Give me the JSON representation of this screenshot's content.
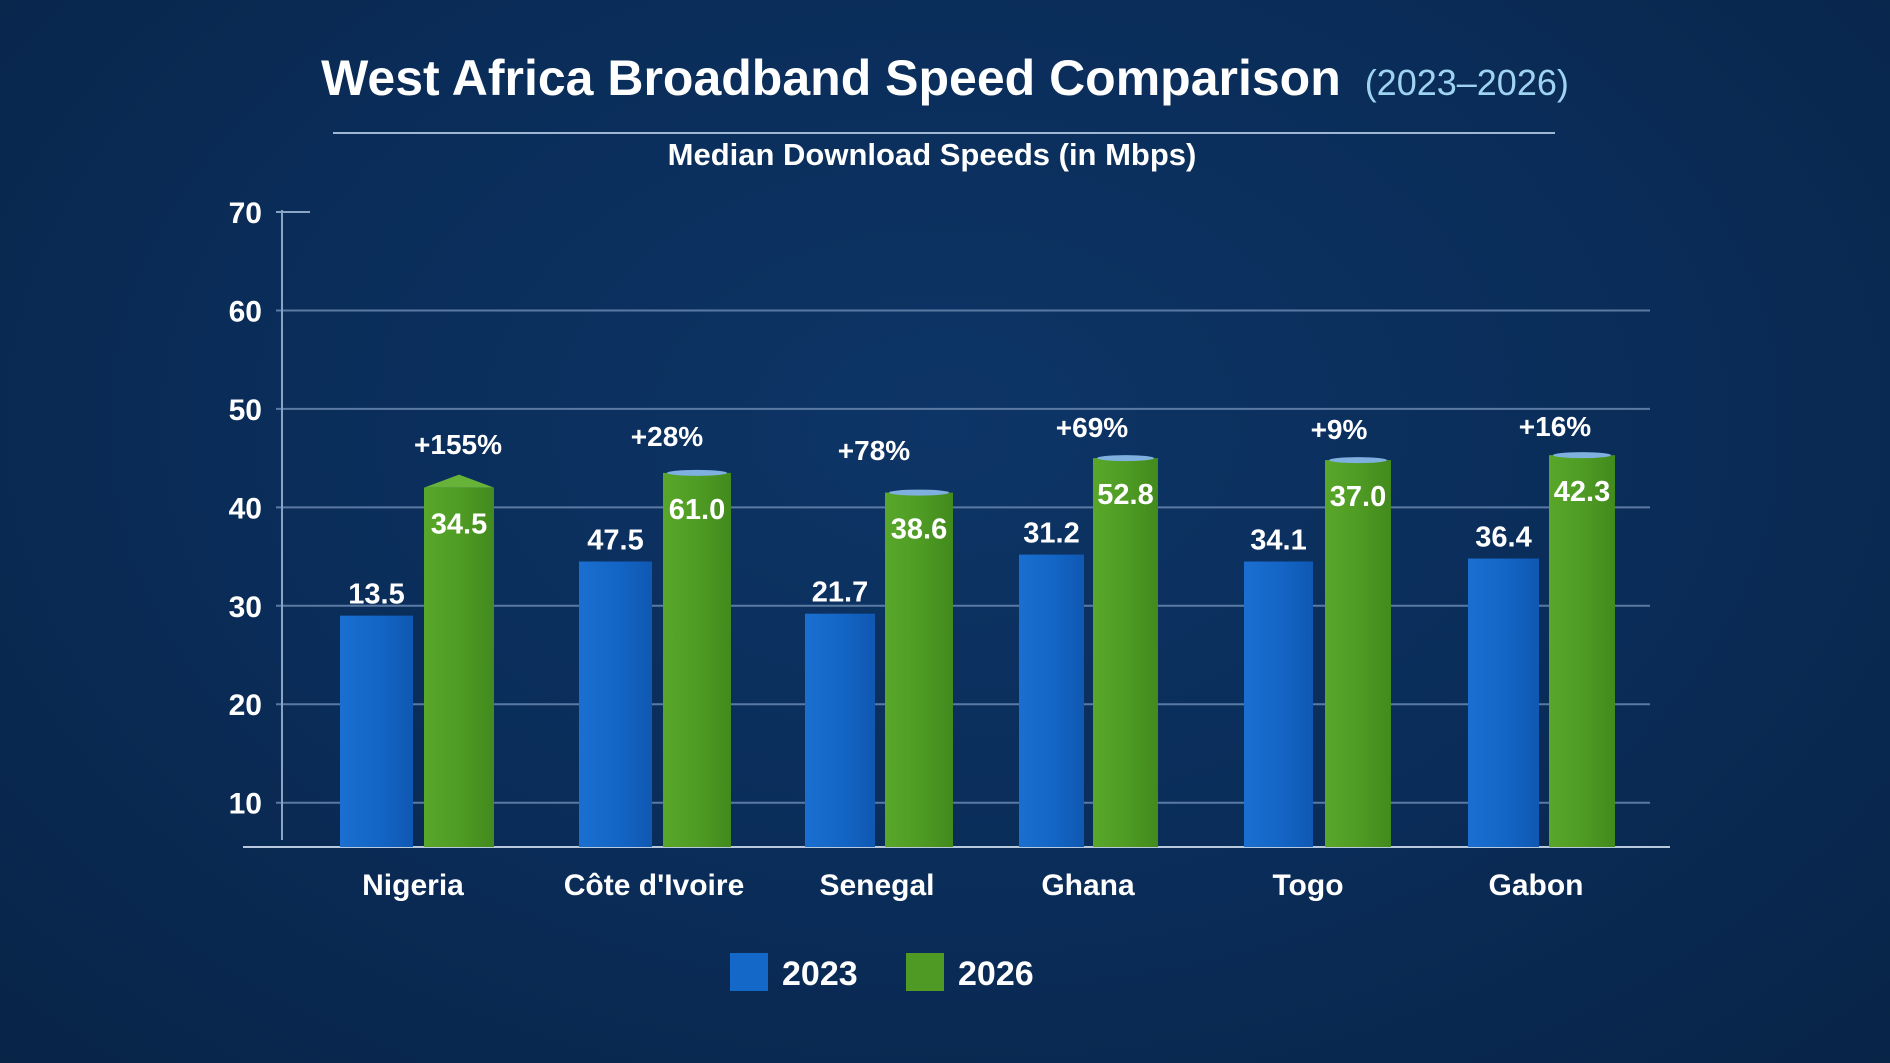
{
  "chart_data": {
    "type": "bar",
    "title": "West Africa Broadband Speed Comparison",
    "title_years": "(2023–2026)",
    "subtitle": "Median Download Speeds (in Mbps)",
    "categories": [
      "Nigeria",
      "Côte d'Ivoire",
      "Senegal",
      "Ghana",
      "Togo",
      "Gabon"
    ],
    "series": [
      {
        "name": "2023",
        "color": "#1468c8",
        "values": [
          13.5,
          47.5,
          21.7,
          31.2,
          34.1,
          36.4
        ],
        "bar_heights": [
          29,
          34.5,
          29.2,
          35.2,
          34.5,
          34.8
        ]
      },
      {
        "name": "2026",
        "color": "#4f9a24",
        "values": [
          34.5,
          61.0,
          38.6,
          52.8,
          37.0,
          42.3
        ],
        "bar_heights": [
          42,
          43.5,
          41.5,
          45,
          44.8,
          45.3
        ]
      }
    ],
    "value_labels_2023": [
      "13.5",
      "47.5",
      "21.7",
      "31.2",
      "34.1",
      "36.4"
    ],
    "value_labels_2026": [
      "34.5",
      "61.0",
      "38.6",
      "52.8",
      "37.0",
      "42.3"
    ],
    "change_labels": [
      "+155%",
      "+28%",
      "+78%",
      "+69%",
      "+9%",
      "+16%"
    ],
    "ylim": [
      5.5,
      70
    ],
    "yticks": [
      10,
      20,
      30,
      40,
      50,
      60,
      70
    ],
    "ytick_labels": [
      "10",
      "20",
      "30",
      "40",
      "50",
      "60",
      "70"
    ],
    "grid": true,
    "legend_placement": "bottom-center",
    "legend": [
      "2023",
      "2026"
    ]
  }
}
